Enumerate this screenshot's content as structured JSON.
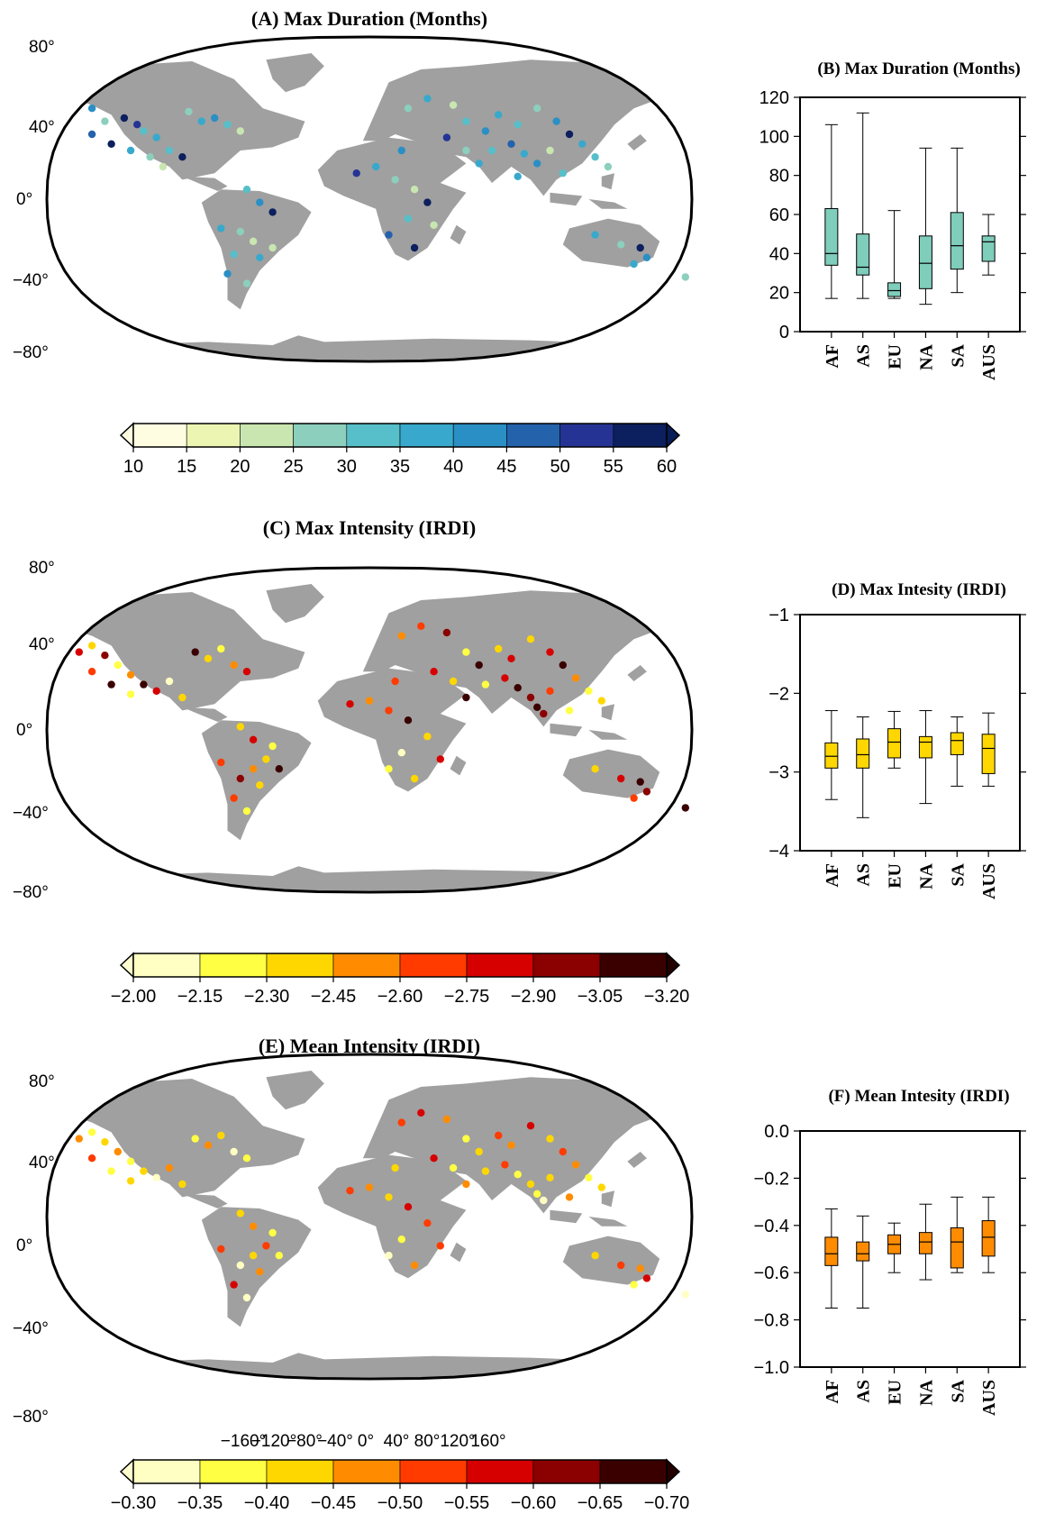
{
  "chart_data": [
    {
      "type": "map",
      "panel": "A",
      "title": "(A) Max Duration (Months)",
      "lat_labels": [
        "80°",
        "40°",
        "0°",
        "−40°",
        "−80°"
      ],
      "lon_labels": [],
      "colorbar": {
        "ticks": [
          "10",
          "15",
          "20",
          "25",
          "30",
          "35",
          "40",
          "45",
          "50",
          "55",
          "60"
        ],
        "colors": [
          "#fffde1",
          "#edf5b2",
          "#c9e6b0",
          "#8ccfbd",
          "#56bfc9",
          "#38a9cc",
          "#2a8fc4",
          "#2462ac",
          "#253494",
          "#0c1f5e"
        ],
        "under_color": "#fffde1",
        "over_color": "#081d58"
      }
    },
    {
      "type": "box",
      "panel": "B",
      "title": "(B) Max Duration (Months)",
      "categories": [
        "AF",
        "AS",
        "EU",
        "NA",
        "SA",
        "AUS"
      ],
      "ylim": [
        0,
        120
      ],
      "yticks": [
        "0",
        "20",
        "40",
        "60",
        "80",
        "100",
        "120"
      ],
      "color": "#7fcdbb",
      "boxes": [
        {
          "min": 17,
          "q1": 34,
          "median": 40,
          "q3": 63,
          "max": 106
        },
        {
          "min": 17,
          "q1": 29,
          "median": 33,
          "q3": 50,
          "max": 112
        },
        {
          "min": 17,
          "q1": 18,
          "median": 21,
          "q3": 25,
          "max": 62
        },
        {
          "min": 14,
          "q1": 22,
          "median": 35,
          "q3": 49,
          "max": 94
        },
        {
          "min": 20,
          "q1": 32,
          "median": 44,
          "q3": 61,
          "max": 94
        },
        {
          "min": 29,
          "q1": 36,
          "median": 46,
          "q3": 49,
          "max": 60
        }
      ]
    },
    {
      "type": "map",
      "panel": "C",
      "title": "(C) Max Intensity (IRDI)",
      "lat_labels": [
        "80°",
        "40°",
        "0°",
        "−40°",
        "−80°"
      ],
      "lon_labels": [],
      "colorbar": {
        "ticks": [
          "−2.00",
          "−2.15",
          "−2.30",
          "−2.45",
          "−2.60",
          "−2.75",
          "−2.90",
          "−3.05",
          "−3.20"
        ],
        "colors": [
          "#ffffc4",
          "#ffff44",
          "#ffd700",
          "#ff8c00",
          "#ff3b00",
          "#d60000",
          "#8b0000",
          "#3a0000"
        ],
        "under_color": "#ffffd0",
        "over_color": "#220000"
      }
    },
    {
      "type": "box",
      "panel": "D",
      "title": "(D) Max Intesity (IRDI)",
      "categories": [
        "AF",
        "AS",
        "EU",
        "NA",
        "SA",
        "AUS"
      ],
      "ylim": [
        -4,
        -1
      ],
      "yticks": [
        "−4",
        "−3",
        "−2",
        "−1"
      ],
      "color": "#ffd700",
      "boxes": [
        {
          "min": -3.35,
          "q1": -2.95,
          "median": -2.8,
          "q3": -2.63,
          "max": -2.22
        },
        {
          "min": -3.58,
          "q1": -2.95,
          "median": -2.78,
          "q3": -2.58,
          "max": -2.3
        },
        {
          "min": -2.95,
          "q1": -2.82,
          "median": -2.62,
          "q3": -2.45,
          "max": -2.23
        },
        {
          "min": -3.4,
          "q1": -2.82,
          "median": -2.62,
          "q3": -2.55,
          "max": -2.22
        },
        {
          "min": -3.18,
          "q1": -2.78,
          "median": -2.6,
          "q3": -2.5,
          "max": -2.3
        },
        {
          "min": -3.18,
          "q1": -3.02,
          "median": -2.7,
          "q3": -2.52,
          "max": -2.25
        }
      ]
    },
    {
      "type": "map",
      "panel": "E",
      "title": "(E) Mean Intensity (IRDI)",
      "lat_labels": [
        "80°",
        "40°",
        "0°",
        "−40°",
        "−80°"
      ],
      "lon_labels": [
        "−160°",
        "−120°",
        "−80°",
        "−40°",
        "0°",
        "40°",
        "80°",
        "120°",
        "160°"
      ],
      "colorbar": {
        "ticks": [
          "−0.30",
          "−0.35",
          "−0.40",
          "−0.45",
          "−0.50",
          "−0.55",
          "−0.60",
          "−0.65",
          "−0.70"
        ],
        "colors": [
          "#ffffc4",
          "#ffff44",
          "#ffd700",
          "#ff8c00",
          "#ff3b00",
          "#d60000",
          "#8b0000",
          "#3a0000"
        ],
        "under_color": "#ffffd0",
        "over_color": "#220000"
      }
    },
    {
      "type": "box",
      "panel": "F",
      "title": "(F) Mean Intesity (IRDI)",
      "categories": [
        "AF",
        "AS",
        "EU",
        "NA",
        "SA",
        "AUS"
      ],
      "ylim": [
        -1.0,
        0.0
      ],
      "yticks": [
        "−1.0",
        "−0.8",
        "−0.6",
        "−0.4",
        "−0.2",
        "0.0"
      ],
      "color": "#ff8c00",
      "boxes": [
        {
          "min": -0.75,
          "q1": -0.57,
          "median": -0.52,
          "q3": -0.45,
          "max": -0.33
        },
        {
          "min": -0.75,
          "q1": -0.55,
          "median": -0.52,
          "q3": -0.47,
          "max": -0.36
        },
        {
          "min": -0.6,
          "q1": -0.52,
          "median": -0.48,
          "q3": -0.44,
          "max": -0.39
        },
        {
          "min": -0.63,
          "q1": -0.52,
          "median": -0.47,
          "q3": -0.43,
          "max": -0.31
        },
        {
          "min": -0.6,
          "q1": -0.58,
          "median": -0.47,
          "q3": -0.41,
          "max": -0.28
        },
        {
          "min": -0.6,
          "q1": -0.53,
          "median": -0.45,
          "q3": -0.38,
          "max": -0.28
        }
      ]
    }
  ]
}
